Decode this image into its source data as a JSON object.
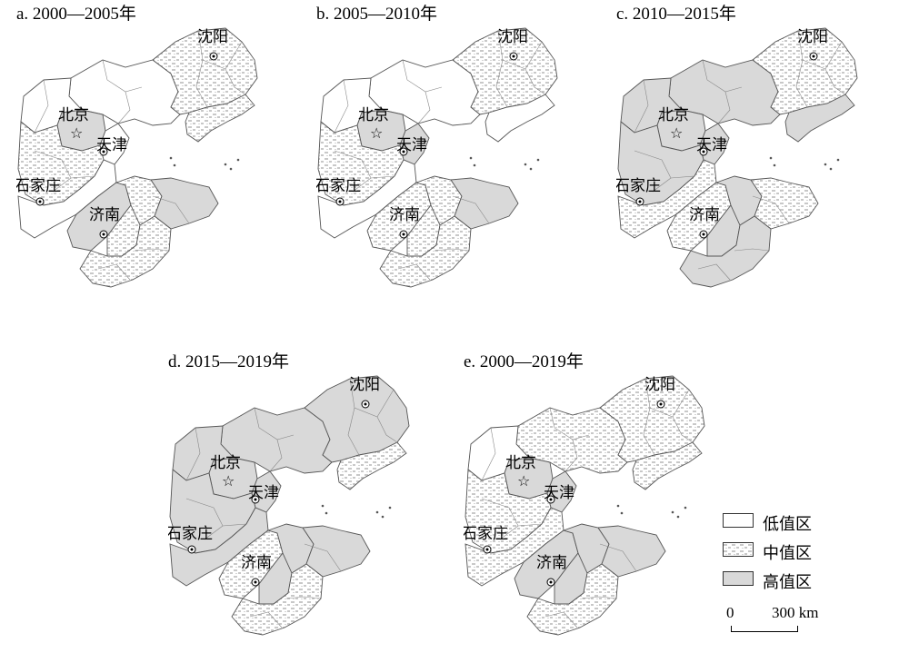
{
  "panels": [
    {
      "id": "a",
      "title": "a. 2000—2005年",
      "shenyang": "mid",
      "liaoning_w": "low",
      "liaodong": "mid",
      "beijing": "high",
      "tianjin": "low",
      "hebei_n": "low",
      "hebei_c": "mid",
      "hebei_s": "low",
      "shandong_w": "high",
      "shandong_c": "mid",
      "shandong_e": "high",
      "shandong_s": "mid"
    },
    {
      "id": "b",
      "title": "b. 2005—2010年",
      "shenyang": "mid",
      "liaoning_w": "low",
      "liaodong": "low",
      "beijing": "high",
      "tianjin": "high",
      "hebei_n": "low",
      "hebei_c": "mid",
      "hebei_s": "low",
      "shandong_w": "mid",
      "shandong_c": "mid",
      "shandong_e": "high",
      "shandong_s": "mid"
    },
    {
      "id": "c",
      "title": "c. 2010—2015年",
      "shenyang": "mid",
      "liaoning_w": "high",
      "liaodong": "high",
      "beijing": "high",
      "tianjin": "high",
      "hebei_n": "high",
      "hebei_c": "high",
      "hebei_s": "mid",
      "shandong_w": "mid",
      "shandong_c": "high",
      "shandong_e": "mid",
      "shandong_s": "high"
    },
    {
      "id": "d",
      "title": "d. 2015—2019年",
      "shenyang": "high",
      "liaoning_w": "high",
      "liaodong": "mid",
      "beijing": "high",
      "tianjin": "high",
      "hebei_n": "high",
      "hebei_c": "high",
      "hebei_s": "high",
      "shandong_w": "mid",
      "shandong_c": "high",
      "shandong_e": "high",
      "shandong_s": "mid"
    },
    {
      "id": "e",
      "title": "e. 2000—2019年",
      "shenyang": "mid",
      "liaoning_w": "mid",
      "liaodong": "mid",
      "beijing": "high",
      "tianjin": "high",
      "hebei_n": "low",
      "hebei_c": "mid",
      "hebei_s": "mid",
      "shandong_w": "high",
      "shandong_c": "high",
      "shandong_e": "high",
      "shandong_s": "mid"
    }
  ],
  "cities": {
    "shenyang": "沈阳",
    "beijing": "北京",
    "tianjin": "天津",
    "shijiazhuang": "石家庄",
    "jinan": "济南"
  },
  "legend": {
    "low": "低值区",
    "mid": "中值区",
    "high": "高值区",
    "colors": {
      "low": "#ffffff",
      "mid": "#e4e4e4",
      "high": "#d9d9d9",
      "border": "#555555"
    }
  },
  "scale": {
    "zero": "0",
    "distance": "300 km"
  }
}
